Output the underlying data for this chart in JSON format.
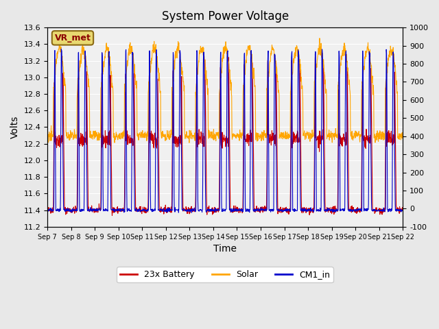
{
  "title": "System Power Voltage",
  "xlabel": "Time",
  "ylabel": "Volts",
  "ylim_left": [
    11.2,
    13.6
  ],
  "ylim_right": [
    -100,
    1000
  ],
  "yticks_left": [
    11.2,
    11.4,
    11.6,
    11.8,
    12.0,
    12.2,
    12.4,
    12.6,
    12.8,
    13.0,
    13.2,
    13.4,
    13.6
  ],
  "yticks_right": [
    -100,
    0,
    100,
    200,
    300,
    400,
    500,
    600,
    700,
    800,
    900,
    1000
  ],
  "xtick_labels": [
    "Sep 7",
    "Sep 8",
    "Sep 9",
    "Sep 10",
    "Sep 11",
    "Sep 12",
    "Sep 13",
    "Sep 14",
    "Sep 15",
    "Sep 16",
    "Sep 17",
    "Sep 18",
    "Sep 19",
    "Sep 20",
    "Sep 21",
    "Sep 22"
  ],
  "n_days": 15,
  "bg_color": "#e8e8e8",
  "plot_bg": "#f0f0f0",
  "grid_color": "#ffffff",
  "legend_entries": [
    "23x Battery",
    "Solar",
    "CM1_in"
  ],
  "legend_colors": [
    "#cc0000",
    "#ffa500",
    "#0000cc"
  ],
  "battery_base": 11.4,
  "battery_peak": 13.25,
  "cm1_base": 11.4,
  "cm1_peak": 13.3,
  "solar_base": 12.3,
  "solar_peak": 13.35,
  "annotation_text": "VR_met",
  "annotation_color": "#8b0000",
  "annotation_bg": "#e8d870",
  "annotation_border": "#8b6914"
}
